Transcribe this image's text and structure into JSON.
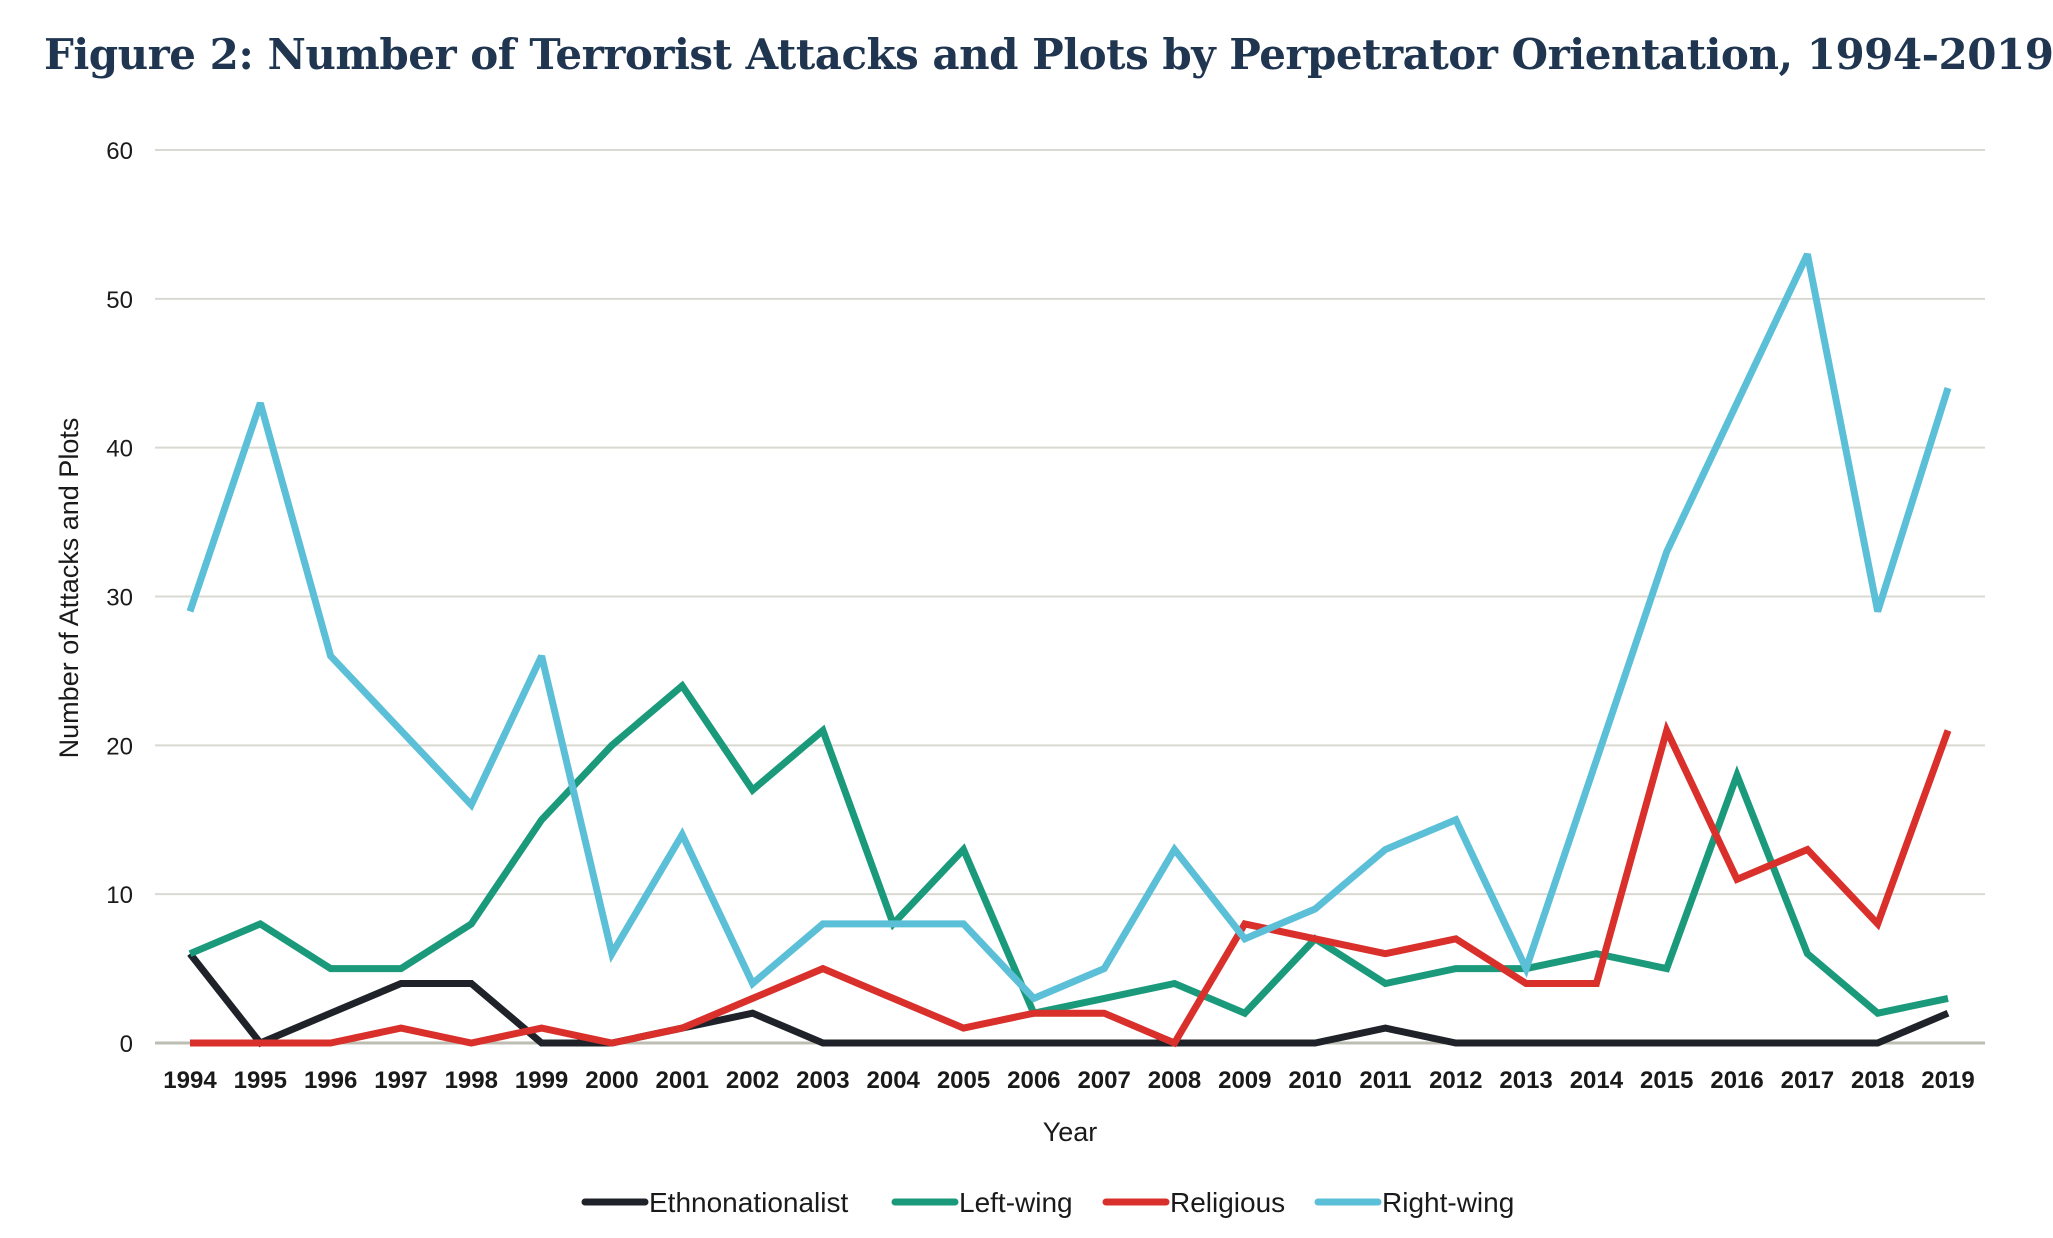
{
  "title": "Figure 2: Number of Terrorist Attacks and Plots by Perpetrator Orientation, 1994-2019",
  "chart_data": {
    "type": "line",
    "title": "Figure 2: Number of Terrorist Attacks and Plots by Perpetrator Orientation, 1994-2019",
    "xlabel": "Year",
    "ylabel": "Number of Attacks and Plots",
    "ylim": [
      0,
      60
    ],
    "yticks": [
      0,
      10,
      20,
      30,
      40,
      50,
      60
    ],
    "grid": "horizontal",
    "legend_position": "bottom",
    "categories": [
      "1994",
      "1995",
      "1996",
      "1997",
      "1998",
      "1999",
      "2000",
      "2001",
      "2002",
      "2003",
      "2004",
      "2005",
      "2006",
      "2007",
      "2008",
      "2009",
      "2010",
      "2011",
      "2012",
      "2013",
      "2014",
      "2015",
      "2016",
      "2017",
      "2018",
      "2019"
    ],
    "series": [
      {
        "name": "Ethnonationalist",
        "color": "#1f2329",
        "values": [
          6,
          0,
          2,
          4,
          4,
          0,
          0,
          1,
          2,
          0,
          0,
          0,
          0,
          0,
          0,
          0,
          0,
          1,
          0,
          0,
          0,
          0,
          0,
          0,
          0,
          2
        ]
      },
      {
        "name": "Left-wing",
        "color": "#1a9a7a",
        "values": [
          6,
          8,
          5,
          5,
          8,
          15,
          20,
          24,
          17,
          21,
          8,
          13,
          2,
          3,
          4,
          2,
          7,
          4,
          5,
          5,
          6,
          5,
          18,
          6,
          2,
          3
        ]
      },
      {
        "name": "Religious",
        "color": "#d9302c",
        "values": [
          0,
          0,
          0,
          1,
          0,
          1,
          0,
          1,
          3,
          5,
          3,
          1,
          2,
          2,
          0,
          8,
          7,
          6,
          7,
          4,
          4,
          21,
          11,
          13,
          8,
          21
        ]
      },
      {
        "name": "Right-wing",
        "color": "#5bbfd8",
        "values": [
          29,
          43,
          26,
          21,
          16,
          26,
          6,
          14,
          4,
          8,
          8,
          8,
          3,
          5,
          13,
          7,
          9,
          13,
          15,
          5,
          19,
          33,
          43,
          53,
          29,
          44
        ]
      }
    ]
  }
}
